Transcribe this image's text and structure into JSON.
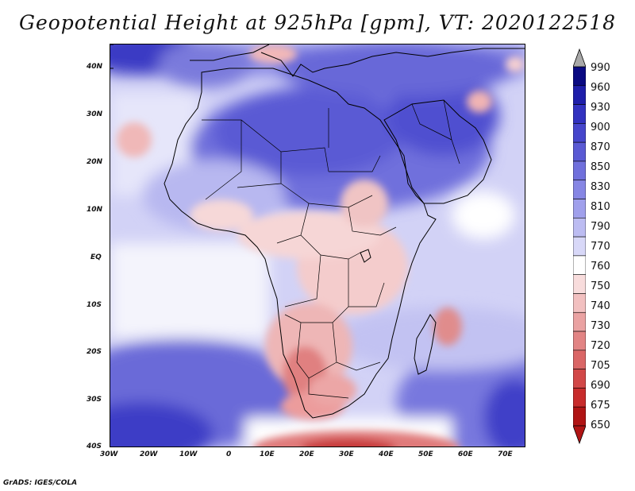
{
  "title": "Geopotential Height at 925hPa [gpm], VT: 2020122518",
  "credit": "GrADS: IGES/COLA",
  "axes": {
    "lat_labels": [
      "40N",
      "30N",
      "20N",
      "10N",
      "EQ",
      "10S",
      "20S",
      "30S",
      "40S"
    ],
    "lon_labels": [
      "30W",
      "20W",
      "10W",
      "0",
      "10E",
      "20E",
      "30E",
      "40E",
      "50E",
      "60E",
      "70E"
    ]
  },
  "colorbar": {
    "levels": [
      "990",
      "960",
      "930",
      "900",
      "870",
      "850",
      "830",
      "810",
      "790",
      "770",
      "760",
      "750",
      "740",
      "730",
      "720",
      "705",
      "690",
      "675",
      "650"
    ],
    "colors": [
      "#0a0a82",
      "#1e1eaa",
      "#3232c0",
      "#4646cc",
      "#5a5ad4",
      "#7070dc",
      "#8686e4",
      "#a0a0ec",
      "#bcbcf2",
      "#d8d8f8",
      "#ffffff",
      "#f8dcdc",
      "#f2c0c0",
      "#eaa2a2",
      "#e28484",
      "#da6666",
      "#d24848",
      "#c82c2c",
      "#b01414"
    ],
    "top_arrow_color": "#a8a8a8",
    "bottom_arrow_color": "#b01414"
  }
}
